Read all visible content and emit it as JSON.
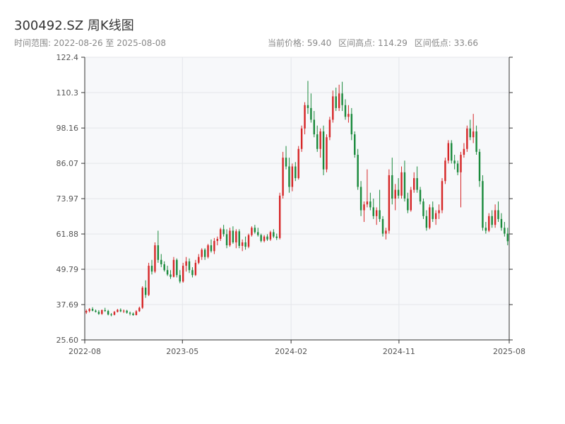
{
  "header": {
    "title": "300492.SZ 周K线图",
    "subtitle": "时间范围: 2022-08-26 至 2025-08-08",
    "current_price": "当前价格: 59.40",
    "high": "区间高点: 114.29",
    "low": "区间低点: 33.66"
  },
  "colors": {
    "up": "#d62728",
    "down": "#1a8a3c",
    "plot_bg": "#f7f8fa",
    "grid": "#e4e6ea",
    "axis": "#333333"
  },
  "chart_data": {
    "type": "candlestick",
    "title": "300492.SZ 周K线图",
    "x_range": [
      "2022-08-26",
      "2025-08-08"
    ],
    "ylim": [
      25.6,
      122.4
    ],
    "y_ticks": [
      25.6,
      37.69,
      49.79,
      61.88,
      73.97,
      86.07,
      98.16,
      110.3,
      122.4
    ],
    "y_tick_labels": [
      "25.60",
      "37.69",
      "49.79",
      "61.88",
      "73.97",
      "86.07",
      "98.16",
      "110.3",
      "122.4"
    ],
    "x_ticks": [
      "2022-08",
      "2023-05",
      "2024-02",
      "2024-11",
      "2025-08"
    ],
    "x_tick_dates": [
      "2022-08-26",
      "2023-05-01",
      "2024-02-01",
      "2024-11-01",
      "2025-08-08"
    ],
    "grid": true,
    "current_price": 59.4,
    "range_high": 114.29,
    "range_low": 33.66,
    "ohlc": [
      [
        35.0,
        36.0,
        34.5,
        35.5
      ],
      [
        35.5,
        36.5,
        35.0,
        36.2
      ],
      [
        36.2,
        36.8,
        35.4,
        35.6
      ],
      [
        35.6,
        36.0,
        35.0,
        35.2
      ],
      [
        35.2,
        35.8,
        34.2,
        34.5
      ],
      [
        34.5,
        36.0,
        34.2,
        35.8
      ],
      [
        35.8,
        36.6,
        35.2,
        35.5
      ],
      [
        35.5,
        35.9,
        34.0,
        34.3
      ],
      [
        34.3,
        34.8,
        33.7,
        34.2
      ],
      [
        34.2,
        35.5,
        34.0,
        35.2
      ],
      [
        35.2,
        36.2,
        35.0,
        35.9
      ],
      [
        35.9,
        36.4,
        35.1,
        35.4
      ],
      [
        35.4,
        36.0,
        34.8,
        35.6
      ],
      [
        35.6,
        35.9,
        34.6,
        34.9
      ],
      [
        34.9,
        35.3,
        34.0,
        34.6
      ],
      [
        34.6,
        35.0,
        33.9,
        34.1
      ],
      [
        34.1,
        35.8,
        34.0,
        35.4
      ],
      [
        35.4,
        37.0,
        35.2,
        36.6
      ],
      [
        36.6,
        44.0,
        36.2,
        43.5
      ],
      [
        43.5,
        46.0,
        40.0,
        41.0
      ],
      [
        41.0,
        52.0,
        40.6,
        51.0
      ],
      [
        51.0,
        53.0,
        48.0,
        49.0
      ],
      [
        49.0,
        59.0,
        48.5,
        58.0
      ],
      [
        58.0,
        63.0,
        52.0,
        53.0
      ],
      [
        53.0,
        55.0,
        50.5,
        51.5
      ],
      [
        51.5,
        52.5,
        49.0,
        49.5
      ],
      [
        49.5,
        51.0,
        47.5,
        48.0
      ],
      [
        48.0,
        49.5,
        46.5,
        47.2
      ],
      [
        47.2,
        54.0,
        47.0,
        53.0
      ],
      [
        53.0,
        53.5,
        47.0,
        47.8
      ],
      [
        47.8,
        49.5,
        45.0,
        45.6
      ],
      [
        45.6,
        52.0,
        45.2,
        51.0
      ],
      [
        51.0,
        54.0,
        49.0,
        52.5
      ],
      [
        52.5,
        53.5,
        48.5,
        49.5
      ],
      [
        49.5,
        50.5,
        47.0,
        47.8
      ],
      [
        47.8,
        53.0,
        47.5,
        52.0
      ],
      [
        52.0,
        55.0,
        51.5,
        54.0
      ],
      [
        54.0,
        57.0,
        53.0,
        56.5
      ],
      [
        56.5,
        57.0,
        53.0,
        54.0
      ],
      [
        54.0,
        58.5,
        53.5,
        58.0
      ],
      [
        58.0,
        60.0,
        55.5,
        56.0
      ],
      [
        56.0,
        60.5,
        55.0,
        59.5
      ],
      [
        59.5,
        61.0,
        58.0,
        60.2
      ],
      [
        60.2,
        64.0,
        59.5,
        63.5
      ],
      [
        63.5,
        65.0,
        61.0,
        61.8
      ],
      [
        61.8,
        63.5,
        57.0,
        58.0
      ],
      [
        58.0,
        64.0,
        57.5,
        63.0
      ],
      [
        63.0,
        64.5,
        58.5,
        59.0
      ],
      [
        59.0,
        63.5,
        57.0,
        62.8
      ],
      [
        62.8,
        63.5,
        57.0,
        57.8
      ],
      [
        57.8,
        60.0,
        56.0,
        59.0
      ],
      [
        59.0,
        61.0,
        56.5,
        57.5
      ],
      [
        57.5,
        62.0,
        57.0,
        61.5
      ],
      [
        61.5,
        64.5,
        61.0,
        64.0
      ],
      [
        64.0,
        65.0,
        62.0,
        62.5
      ],
      [
        62.5,
        64.0,
        61.0,
        61.5
      ],
      [
        61.5,
        62.0,
        59.0,
        59.5
      ],
      [
        59.5,
        61.5,
        59.0,
        61.0
      ],
      [
        61.0,
        61.8,
        59.5,
        60.0
      ],
      [
        60.0,
        63.0,
        59.5,
        62.5
      ],
      [
        62.5,
        63.5,
        60.5,
        61.0
      ],
      [
        61.0,
        62.0,
        59.8,
        60.5
      ],
      [
        60.5,
        76.0,
        60.0,
        75.0
      ],
      [
        75.0,
        90.0,
        74.0,
        88.0
      ],
      [
        88.0,
        92.0,
        84.0,
        85.0
      ],
      [
        85.0,
        88.0,
        76.0,
        78.0
      ],
      [
        78.0,
        86.0,
        76.5,
        85.0
      ],
      [
        85.0,
        86.5,
        80.0,
        81.0
      ],
      [
        81.0,
        92.0,
        80.5,
        91.0
      ],
      [
        91.0,
        99.0,
        90.0,
        98.0
      ],
      [
        98.0,
        107.0,
        96.0,
        106.0
      ],
      [
        106.0,
        114.3,
        103.0,
        105.0
      ],
      [
        105.0,
        110.0,
        100.0,
        101.0
      ],
      [
        101.0,
        104.0,
        95.0,
        96.0
      ],
      [
        96.0,
        99.0,
        90.0,
        91.0
      ],
      [
        91.0,
        98.0,
        88.0,
        97.0
      ],
      [
        97.0,
        99.0,
        82.0,
        84.0
      ],
      [
        84.0,
        96.0,
        83.0,
        95.0
      ],
      [
        95.0,
        102.0,
        94.0,
        101.0
      ],
      [
        101.0,
        111.0,
        100.0,
        109.0
      ],
      [
        109.0,
        112.0,
        104.0,
        105.0
      ],
      [
        105.0,
        113.0,
        104.0,
        110.0
      ],
      [
        110.0,
        114.0,
        104.0,
        106.0
      ],
      [
        106.0,
        108.0,
        101.0,
        102.0
      ],
      [
        102.0,
        106.0,
        100.0,
        103.0
      ],
      [
        103.0,
        105.0,
        94.0,
        96.0
      ],
      [
        96.0,
        97.0,
        88.0,
        89.0
      ],
      [
        89.0,
        91.0,
        77.0,
        78.0
      ],
      [
        78.0,
        80.0,
        68.0,
        70.0
      ],
      [
        70.0,
        73.0,
        66.0,
        72.0
      ],
      [
        72.0,
        84.0,
        71.0,
        73.0
      ],
      [
        73.0,
        76.0,
        70.0,
        71.0
      ],
      [
        71.0,
        74.0,
        67.0,
        68.0
      ],
      [
        68.0,
        71.0,
        65.0,
        70.0
      ],
      [
        70.0,
        77.0,
        66.0,
        67.0
      ],
      [
        67.0,
        68.0,
        61.0,
        62.0
      ],
      [
        62.0,
        64.0,
        60.0,
        63.0
      ],
      [
        63.0,
        84.0,
        62.0,
        82.0
      ],
      [
        82.0,
        88.0,
        72.0,
        74.0
      ],
      [
        74.0,
        79.0,
        70.0,
        77.0
      ],
      [
        77.0,
        81.0,
        74.0,
        75.0
      ],
      [
        75.0,
        85.0,
        74.0,
        83.0
      ],
      [
        83.0,
        87.0,
        73.0,
        74.0
      ],
      [
        74.0,
        76.0,
        69.0,
        70.0
      ],
      [
        70.0,
        78.0,
        69.5,
        77.0
      ],
      [
        77.0,
        83.0,
        76.0,
        81.0
      ],
      [
        81.0,
        85.0,
        76.0,
        77.0
      ],
      [
        77.0,
        78.0,
        72.0,
        73.0
      ],
      [
        73.0,
        74.0,
        67.0,
        68.0
      ],
      [
        68.0,
        70.0,
        63.0,
        64.0
      ],
      [
        64.0,
        72.0,
        63.5,
        71.0
      ],
      [
        71.0,
        73.0,
        66.0,
        67.0
      ],
      [
        67.0,
        70.0,
        65.0,
        69.0
      ],
      [
        69.0,
        72.0,
        67.0,
        70.0
      ],
      [
        70.0,
        81.0,
        69.0,
        80.0
      ],
      [
        80.0,
        88.0,
        79.0,
        87.0
      ],
      [
        87.0,
        94.0,
        86.0,
        93.0
      ],
      [
        93.0,
        94.0,
        86.0,
        87.0
      ],
      [
        87.0,
        89.0,
        84.0,
        86.0
      ],
      [
        86.0,
        87.0,
        82.0,
        83.0
      ],
      [
        83.0,
        90.0,
        71.0,
        89.0
      ],
      [
        89.0,
        93.0,
        88.0,
        91.0
      ],
      [
        91.0,
        99.0,
        90.0,
        98.0
      ],
      [
        98.0,
        101.0,
        94.0,
        95.0
      ],
      [
        95.0,
        103.0,
        93.0,
        97.0
      ],
      [
        97.0,
        99.0,
        89.0,
        90.0
      ],
      [
        90.0,
        91.0,
        78.0,
        80.0
      ],
      [
        80.0,
        82.0,
        63.0,
        64.0
      ],
      [
        64.0,
        66.0,
        62.0,
        63.0
      ],
      [
        63.0,
        69.0,
        62.5,
        68.0
      ],
      [
        68.0,
        70.0,
        64.0,
        65.0
      ],
      [
        65.0,
        72.0,
        64.0,
        70.0
      ],
      [
        70.0,
        73.0,
        66.0,
        67.0
      ],
      [
        67.0,
        69.0,
        63.0,
        64.0
      ],
      [
        64.0,
        66.0,
        61.0,
        62.0
      ],
      [
        62.0,
        64.0,
        58.0,
        59.4
      ]
    ]
  }
}
